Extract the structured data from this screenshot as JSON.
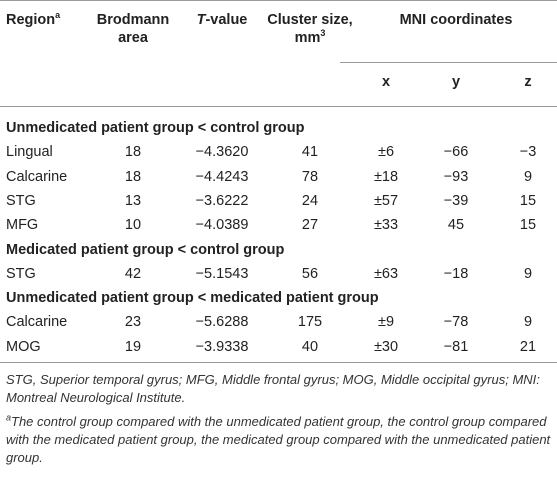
{
  "table": {
    "header": {
      "region": {
        "text": "Region",
        "sup": "a"
      },
      "brodmann": "Brodmann area",
      "t_value": {
        "italic": "T",
        "text": "-value"
      },
      "cluster": {
        "text": "Cluster size, mm",
        "sup": "3"
      },
      "mni": "MNI coordinates",
      "coords": [
        "x",
        "y",
        "z"
      ]
    },
    "sections": [
      {
        "title": "Unmedicated patient group < control group",
        "rows": [
          [
            "Lingual",
            "18",
            "−4.3620",
            "41",
            "±6",
            "−66",
            "−3"
          ],
          [
            "Calcarine",
            "18",
            "−4.4243",
            "78",
            "±18",
            "−93",
            "9"
          ],
          [
            "STG",
            "13",
            "−3.6222",
            "24",
            "±57",
            "−39",
            "15"
          ],
          [
            "MFG",
            "10",
            "−4.0389",
            "27",
            "±33",
            "45",
            "15"
          ]
        ]
      },
      {
        "title": "Medicated patient group < control group",
        "rows": [
          [
            "STG",
            "42",
            "−5.1543",
            "56",
            "±63",
            "−18",
            "9"
          ]
        ]
      },
      {
        "title": "Unmedicated patient group < medicated patient group",
        "rows": [
          [
            "Calcarine",
            "23",
            "−5.6288",
            "175",
            "±9",
            "−78",
            "9"
          ],
          [
            "MOG",
            "19",
            "−3.9338",
            "40",
            "±30",
            "−81",
            "21"
          ]
        ]
      }
    ]
  },
  "footnotes": {
    "abbreviations": "STG, Superior temporal gyrus; MFG, Middle frontal gyrus; MOG, Middle occipital gyrus; MNI: Montreal Neurological Institute.",
    "note_mark": "a",
    "note": "The control group compared with the unmedicated patient group, the control group compared with the medicated patient group, the medicated group compared with the unmedicated patient group."
  }
}
